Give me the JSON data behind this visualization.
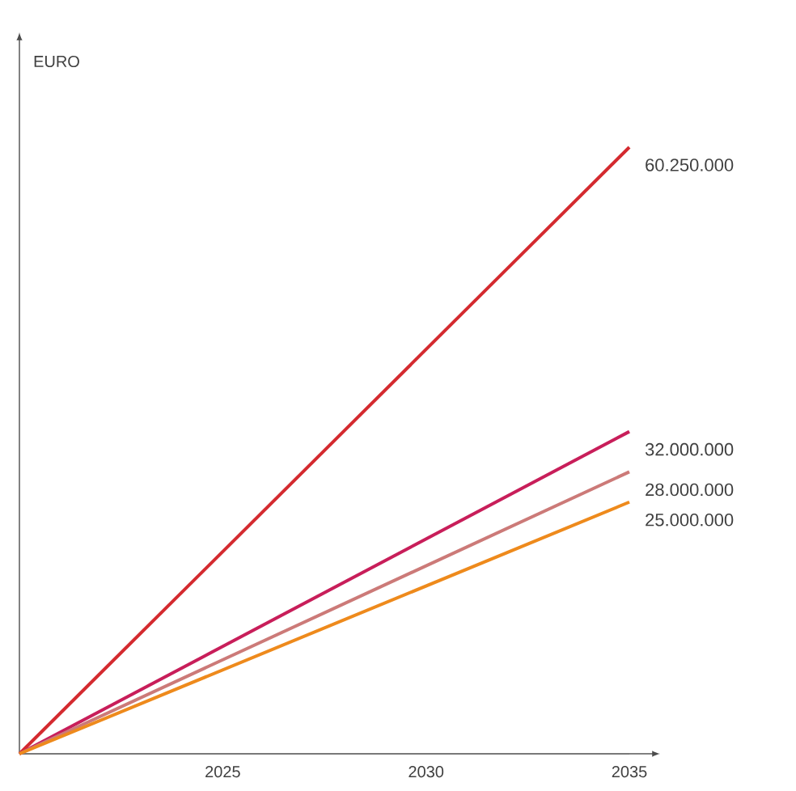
{
  "chart_data": {
    "type": "line",
    "annotations": [
      "EURO"
    ],
    "x": [
      2020,
      2035
    ],
    "xlim": [
      2020,
      2035
    ],
    "xticks": [
      2025,
      2030,
      2035
    ],
    "ylim": [
      0,
      60250000
    ],
    "tick_labels": "x",
    "series": [
      {
        "color": "#d42a2f",
        "values": [
          0,
          60250000
        ],
        "value_labels": [
          null,
          "60.250.000"
        ]
      },
      {
        "color": "#c81e5a",
        "values": [
          0,
          32000000
        ],
        "value_labels": [
          null,
          "32.000.000"
        ]
      },
      {
        "color": "#cc7a78",
        "values": [
          0,
          28000000
        ],
        "value_labels": [
          null,
          "28.000.000"
        ]
      },
      {
        "color": "#ee8a1c",
        "values": [
          0,
          25000000
        ],
        "value_labels": [
          null,
          "25.000.000"
        ]
      }
    ]
  }
}
